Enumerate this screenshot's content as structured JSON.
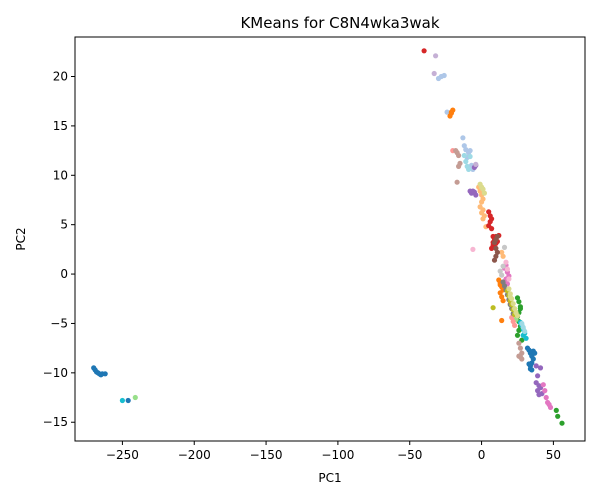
{
  "chart_data": {
    "type": "scatter",
    "title": "KMeans for C8N4wka3wak",
    "xlabel": "PC1",
    "ylabel": "PC2",
    "xlim": [
      -283,
      72
    ],
    "ylim": [
      -16.9,
      24.0
    ],
    "grid": false,
    "legend": "none",
    "xticks": [
      -250,
      -200,
      -150,
      -100,
      -50,
      0,
      50
    ],
    "yticks": [
      -15,
      -10,
      -5,
      0,
      5,
      10,
      15,
      20
    ],
    "xtick_labels": [
      "−250",
      "−200",
      "−150",
      "−100",
      "−50",
      "0",
      "50"
    ],
    "ytick_labels": [
      "−15",
      "−10",
      "−5",
      "0",
      "5",
      "10",
      "15",
      "20"
    ],
    "series": [
      {
        "color": "#1f77b4",
        "x": [
          -270,
          -269,
          -268,
          -267,
          -266,
          -265,
          -264,
          -262,
          -246,
          32,
          33,
          34,
          35,
          36,
          35,
          34,
          33,
          34,
          35,
          36,
          37
        ],
        "y": [
          -9.5,
          -9.7,
          -9.9,
          -10.0,
          -10.1,
          -10.2,
          -10.1,
          -10.1,
          -12.8,
          -7.5,
          -7.7,
          -8.0,
          -8.3,
          -8.6,
          -9.0,
          -9.3,
          -9.1,
          -9.6,
          -9.7,
          -7.8,
          -8.0
        ]
      },
      {
        "color": "#aec7e8",
        "x": [
          -30,
          -28,
          -26,
          -24,
          -13,
          -12,
          -11,
          -10,
          -9,
          -8,
          -7,
          -6
        ],
        "y": [
          19.8,
          20.0,
          20.1,
          16.4,
          13.8,
          13.0,
          12.6,
          11.8,
          12.3,
          12.5,
          11.0,
          10.6
        ]
      },
      {
        "color": "#ff7f0e",
        "x": [
          -22,
          -21,
          -20,
          -21,
          12,
          13,
          14,
          15,
          13,
          14,
          15,
          14,
          13,
          20
        ],
        "y": [
          16.0,
          16.3,
          16.6,
          16.4,
          -0.6,
          -0.9,
          -1.3,
          -1.6,
          -1.9,
          -2.3,
          -2.7,
          -4.7,
          -1.1,
          -3.0
        ]
      },
      {
        "color": "#ffbb78",
        "x": [
          -2,
          -1,
          0,
          1,
          0,
          -1,
          1,
          0,
          2,
          1,
          3,
          14,
          15
        ],
        "y": [
          8.8,
          8.4,
          8.0,
          7.6,
          7.3,
          6.8,
          6.5,
          6.2,
          5.9,
          5.6,
          4.8,
          2.2,
          1.8
        ]
      },
      {
        "color": "#2ca02c",
        "x": [
          25,
          26,
          27,
          26,
          25,
          26,
          27,
          26,
          25,
          27,
          28,
          52,
          53,
          56
        ],
        "y": [
          -2.4,
          -2.8,
          -3.5,
          -3.9,
          -4.3,
          -4.8,
          -5.3,
          -5.7,
          -6.2,
          -3.3,
          -6.7,
          -13.8,
          -14.4,
          -15.1
        ]
      },
      {
        "color": "#98df8a",
        "x": [
          -241,
          24
        ],
        "y": [
          -12.5,
          -4.6
        ]
      },
      {
        "color": "#d62728",
        "x": [
          -40,
          5,
          6,
          7,
          6,
          5,
          7,
          8,
          9,
          10,
          8,
          7,
          9,
          10,
          11,
          12,
          8
        ],
        "y": [
          22.6,
          6.3,
          5.9,
          5.6,
          5.3,
          4.9,
          4.6,
          3.8,
          3.4,
          3.1,
          2.9,
          2.6,
          3.6,
          3.8,
          3.3,
          3.9,
          3.2
        ]
      },
      {
        "color": "#ff9896",
        "x": [
          -20,
          21,
          22,
          23
        ],
        "y": [
          12.5,
          -4.4,
          -4.8,
          -5.2
        ]
      },
      {
        "color": "#9467bd",
        "x": [
          -8,
          -7,
          -6,
          -5,
          -4,
          -5,
          -4,
          38,
          39,
          40,
          41,
          42,
          38,
          39,
          40,
          41
        ],
        "y": [
          8.4,
          8.2,
          8.4,
          8.3,
          8.0,
          10.8,
          11.0,
          -9.3,
          -10.3,
          -11.3,
          -11.5,
          -12.1,
          -11.0,
          -11.8,
          -12.2,
          -9.5
        ]
      },
      {
        "color": "#c5b0d5",
        "x": [
          -33,
          -32,
          -4
        ],
        "y": [
          20.3,
          22.1,
          11.1
        ]
      },
      {
        "color": "#8c564b",
        "x": [
          9,
          10,
          11,
          10,
          9,
          11,
          10
        ],
        "y": [
          3.2,
          2.6,
          2.2,
          1.8,
          1.4,
          3.8,
          3.5
        ]
      },
      {
        "color": "#c49c94",
        "x": [
          -18,
          -17,
          -16,
          -15,
          -16,
          -17,
          26,
          27,
          28,
          27,
          26,
          28
        ],
        "y": [
          12.5,
          12.3,
          12.0,
          11.2,
          10.9,
          9.3,
          -7.0,
          -7.5,
          -8.0,
          -8.4,
          -8.3,
          -8.6
        ]
      },
      {
        "color": "#e377c2",
        "x": [
          16,
          17,
          18,
          19,
          17,
          18,
          43,
          44,
          45,
          46,
          47,
          48
        ],
        "y": [
          0.6,
          0.9,
          0.2,
          -0.2,
          -0.5,
          -1.0,
          -11.2,
          -11.8,
          -12.5,
          -13.0,
          -13.2,
          -13.5
        ]
      },
      {
        "color": "#f7b6d2",
        "x": [
          -6,
          17,
          18,
          19
        ],
        "y": [
          2.5,
          1.2,
          0.5,
          -0.5
        ]
      },
      {
        "color": "#7f7f7f",
        "x": [
          15,
          16,
          17,
          18,
          19,
          20,
          21,
          22
        ],
        "y": [
          -0.8,
          -1.2,
          -1.6,
          -2.1,
          -2.6,
          -3.1,
          -3.5,
          -4.0
        ]
      },
      {
        "color": "#c7c7c7",
        "x": [
          13,
          14,
          15,
          16
        ],
        "y": [
          0.3,
          -0.1,
          0.8,
          2.7
        ]
      },
      {
        "color": "#bcbd22",
        "x": [
          8,
          18,
          19,
          20,
          21,
          22,
          23
        ],
        "y": [
          -3.4,
          -1.7,
          -2.2,
          -2.7,
          -3.1,
          -3.6,
          -4.1
        ]
      },
      {
        "color": "#dbdb8d",
        "x": [
          -1,
          0,
          1,
          2,
          19,
          20,
          21,
          22,
          23,
          24,
          25,
          20
        ],
        "y": [
          9.1,
          8.8,
          8.6,
          8.2,
          -1.5,
          -2.0,
          -2.5,
          -3.0,
          -3.5,
          -3.9,
          -4.2,
          -2.3
        ]
      },
      {
        "color": "#17becf",
        "x": [
          -250,
          27,
          28,
          29,
          30,
          31,
          29
        ],
        "y": [
          -12.8,
          -4.9,
          -5.2,
          -5.6,
          -6.0,
          -6.5,
          -6.2
        ]
      },
      {
        "color": "#9edae5",
        "x": [
          -12,
          -11,
          -10,
          -9,
          -8,
          28,
          29,
          30
        ],
        "y": [
          12.0,
          11.4,
          10.9,
          10.6,
          11.9,
          -5.0,
          -5.4,
          -5.8
        ]
      }
    ]
  }
}
